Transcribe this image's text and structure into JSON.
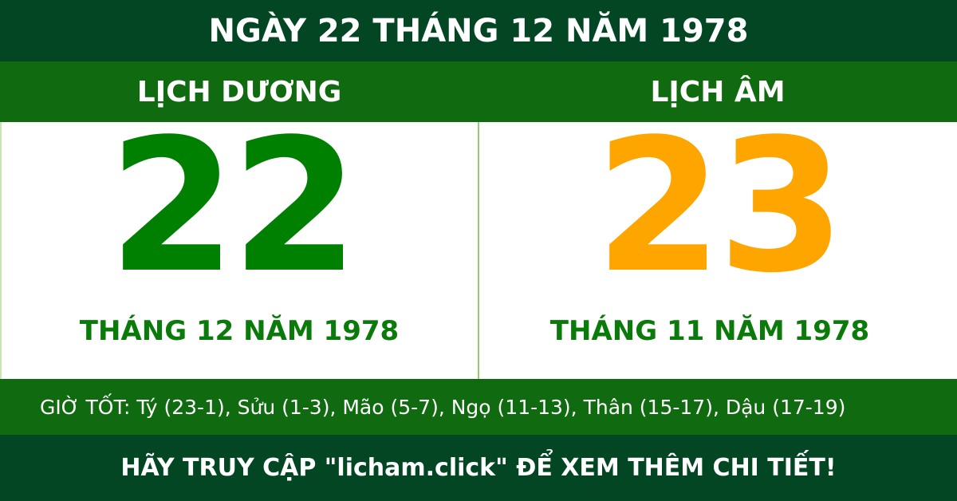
{
  "title": "NGÀY 22 THÁNG 12 NĂM 1978",
  "solar": {
    "label": "LỊCH DƯƠNG",
    "day": "22",
    "month_year": "THÁNG 12 NĂM 1978"
  },
  "lunar": {
    "label": "LỊCH ÂM",
    "day": "23",
    "month_year": "THÁNG 11 NĂM 1978"
  },
  "good_hours": "GIỜ TỐT: Tý (23-1), Sửu (1-3), Mão (5-7), Ngọ (11-13), Thân (15-17), Dậu (17-19)",
  "footer": "HÃY TRUY CẬP \"licham.click\" ĐỂ XEM THÊM CHI TIẾT!",
  "colors": {
    "dark_green": "#034623",
    "green": "#106b10",
    "solar_day": "#008000",
    "lunar_day": "#FFA500"
  }
}
